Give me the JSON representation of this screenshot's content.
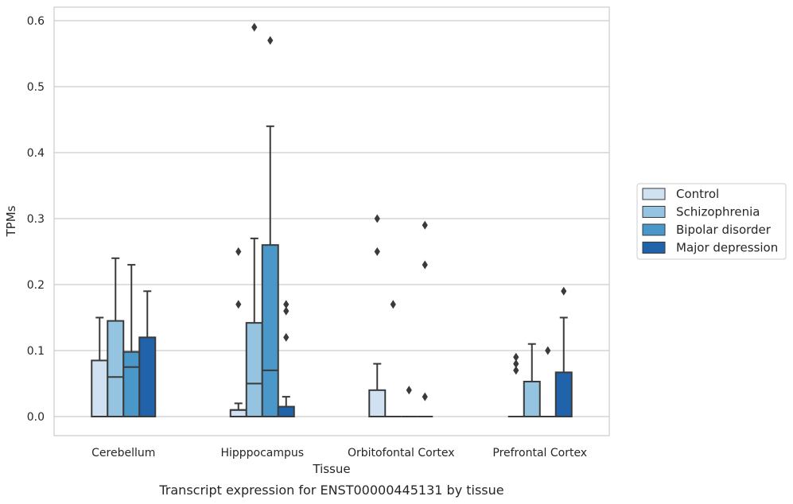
{
  "caption": "Transcript expression for ENST00000445131 by tissue",
  "chart_data": {
    "type": "box",
    "xlabel": "Tissue",
    "ylabel": "TPMs",
    "ylim": [
      -0.028,
      0.62
    ],
    "yticks": [
      0.0,
      0.1,
      0.2,
      0.3,
      0.4,
      0.5,
      0.6
    ],
    "ytick_labels": [
      "0.0",
      "0.1",
      "0.2",
      "0.3",
      "0.4",
      "0.5",
      "0.6"
    ],
    "grid": "horizontal",
    "legend_position": "right",
    "categories": [
      "Cerebellum",
      "Hipppocampus",
      "Orbitofontal Cortex",
      "Prefrontal Cortex"
    ],
    "series": [
      {
        "name": "Control",
        "color": "#d0e1f2",
        "boxes": [
          {
            "q1": 0.0,
            "median": 0.0,
            "q3": 0.085,
            "whisker_low": 0.0,
            "whisker_high": 0.15,
            "outliers": []
          },
          {
            "q1": 0.0,
            "median": 0.01,
            "q3": 0.01,
            "whisker_low": 0.0,
            "whisker_high": 0.02,
            "outliers": [
              0.25,
              0.17
            ]
          },
          {
            "q1": 0.0,
            "median": 0.0,
            "q3": 0.04,
            "whisker_low": 0.0,
            "whisker_high": 0.08,
            "outliers": [
              0.3,
              0.25
            ]
          },
          {
            "q1": 0.0,
            "median": 0.0,
            "q3": 0.0,
            "whisker_low": 0.0,
            "whisker_high": 0.0,
            "outliers": [
              0.09,
              0.08,
              0.07
            ]
          }
        ]
      },
      {
        "name": "Schizophrenia",
        "color": "#94c4df",
        "boxes": [
          {
            "q1": 0.0,
            "median": 0.06,
            "q3": 0.145,
            "whisker_low": 0.0,
            "whisker_high": 0.24,
            "outliers": []
          },
          {
            "q1": 0.0,
            "median": 0.05,
            "q3": 0.142,
            "whisker_low": 0.0,
            "whisker_high": 0.27,
            "outliers": [
              0.59
            ]
          },
          {
            "q1": 0.0,
            "median": 0.0,
            "q3": 0.0,
            "whisker_low": 0.0,
            "whisker_high": 0.0,
            "outliers": [
              0.17
            ]
          },
          {
            "q1": 0.0,
            "median": 0.0,
            "q3": 0.053,
            "whisker_low": 0.0,
            "whisker_high": 0.11,
            "outliers": []
          }
        ]
      },
      {
        "name": "Bipolar disorder",
        "color": "#4a98c9",
        "boxes": [
          {
            "q1": 0.0,
            "median": 0.075,
            "q3": 0.098,
            "whisker_low": 0.0,
            "whisker_high": 0.23,
            "outliers": []
          },
          {
            "q1": 0.0,
            "median": 0.07,
            "q3": 0.26,
            "whisker_low": 0.0,
            "whisker_high": 0.44,
            "outliers": [
              0.57
            ]
          },
          {
            "q1": 0.0,
            "median": 0.0,
            "q3": 0.0,
            "whisker_low": 0.0,
            "whisker_high": 0.0,
            "outliers": [
              0.04
            ]
          },
          {
            "q1": 0.0,
            "median": 0.0,
            "q3": 0.0,
            "whisker_low": 0.0,
            "whisker_high": 0.0,
            "outliers": [
              0.1
            ]
          }
        ]
      },
      {
        "name": "Major depression",
        "color": "#2163aa",
        "boxes": [
          {
            "q1": 0.0,
            "median": 0.0,
            "q3": 0.12,
            "whisker_low": 0.0,
            "whisker_high": 0.19,
            "outliers": []
          },
          {
            "q1": 0.0,
            "median": 0.0,
            "q3": 0.015,
            "whisker_low": 0.0,
            "whisker_high": 0.03,
            "outliers": [
              0.17,
              0.16,
              0.12
            ]
          },
          {
            "q1": 0.0,
            "median": 0.0,
            "q3": 0.0,
            "whisker_low": 0.0,
            "whisker_high": 0.0,
            "outliers": [
              0.29,
              0.23,
              0.03
            ]
          },
          {
            "q1": 0.0,
            "median": 0.0,
            "q3": 0.067,
            "whisker_low": 0.0,
            "whisker_high": 0.15,
            "outliers": [
              0.19
            ]
          }
        ]
      }
    ]
  }
}
